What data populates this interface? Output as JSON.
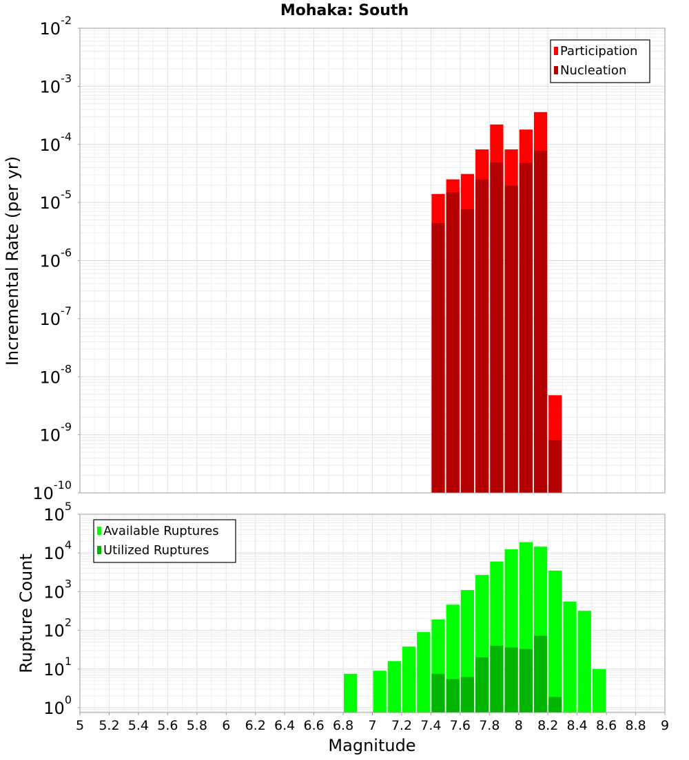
{
  "chart_data": [
    {
      "type": "bar",
      "title": "Mohaka: South",
      "ylabel": "Incremental Rate (per yr)",
      "xlabel": "",
      "yscale": "log",
      "ylim": [
        1e-10,
        0.01
      ],
      "xlim": [
        5,
        9
      ],
      "bin_width": 0.1,
      "grid": true,
      "legend_position": "top-right",
      "y_tick_labels": [
        {
          "base": "10",
          "exp": "-10",
          "value": 1e-10
        },
        {
          "base": "10",
          "exp": "-9",
          "value": 1e-09
        },
        {
          "base": "10",
          "exp": "-8",
          "value": 1e-08
        },
        {
          "base": "10",
          "exp": "-7",
          "value": 1e-07
        },
        {
          "base": "10",
          "exp": "-6",
          "value": 1e-06
        },
        {
          "base": "10",
          "exp": "-5",
          "value": 1e-05
        },
        {
          "base": "10",
          "exp": "-4",
          "value": 0.0001
        },
        {
          "base": "10",
          "exp": "-3",
          "value": 0.001
        },
        {
          "base": "10",
          "exp": "-2",
          "value": 0.01
        }
      ],
      "series": [
        {
          "name": "Participation",
          "color": "#ff0000",
          "x": [
            7.45,
            7.55,
            7.65,
            7.75,
            7.85,
            7.95,
            8.05,
            8.15,
            8.25
          ],
          "values": [
            1.4e-05,
            2.5e-05,
            3.1e-05,
            8.2e-05,
            0.00022,
            8.2e-05,
            0.00018,
            0.00036,
            4.8e-09
          ]
        },
        {
          "name": "Nucleation",
          "color": "#b20000",
          "x": [
            7.45,
            7.55,
            7.65,
            7.75,
            7.85,
            7.95,
            8.05,
            8.15,
            8.25
          ],
          "values": [
            4.4e-06,
            1.5e-05,
            7.6e-06,
            2.5e-05,
            4.9e-05,
            1.95e-05,
            4.8e-05,
            7.8e-05,
            8.2e-10
          ]
        }
      ]
    },
    {
      "type": "bar",
      "title": "",
      "ylabel": "Rupture Count",
      "xlabel": "Magnitude",
      "yscale": "log",
      "ylim": [
        0.75,
        100000.0
      ],
      "xlim": [
        5,
        9
      ],
      "bin_width": 0.1,
      "grid": true,
      "legend_position": "top-left",
      "x_tick_labels": [
        "5",
        "5.2",
        "5.4",
        "5.6",
        "5.8",
        "6",
        "6.2",
        "6.4",
        "6.6",
        "6.8",
        "7",
        "7.2",
        "7.4",
        "7.6",
        "7.8",
        "8",
        "8.2",
        "8.4",
        "8.6",
        "8.8",
        "9"
      ],
      "y_tick_labels": [
        {
          "base": "10",
          "exp": "0",
          "value": 1
        },
        {
          "base": "10",
          "exp": "1",
          "value": 10
        },
        {
          "base": "10",
          "exp": "2",
          "value": 100
        },
        {
          "base": "10",
          "exp": "3",
          "value": 1000
        },
        {
          "base": "10",
          "exp": "4",
          "value": 10000
        },
        {
          "base": "10",
          "exp": "5",
          "value": 100000
        }
      ],
      "series": [
        {
          "name": "Available Ruptures",
          "color": "#00ff00",
          "x": [
            6.85,
            7.05,
            7.15,
            7.25,
            7.35,
            7.45,
            7.55,
            7.65,
            7.75,
            7.85,
            7.95,
            8.05,
            8.15,
            8.25,
            8.35,
            8.45,
            8.55
          ],
          "values": [
            7.5,
            9,
            16,
            38,
            90,
            190,
            460,
            1100,
            2700,
            6000,
            12500,
            19000,
            14500,
            3500,
            550,
            320,
            10
          ]
        },
        {
          "name": "Utilized Ruptures",
          "color": "#00b400",
          "x": [
            7.45,
            7.55,
            7.65,
            7.75,
            7.85,
            7.95,
            8.05,
            8.15,
            8.25
          ],
          "values": [
            7.5,
            5.5,
            6.2,
            20,
            40,
            36,
            33,
            72,
            1.9
          ]
        }
      ]
    }
  ]
}
